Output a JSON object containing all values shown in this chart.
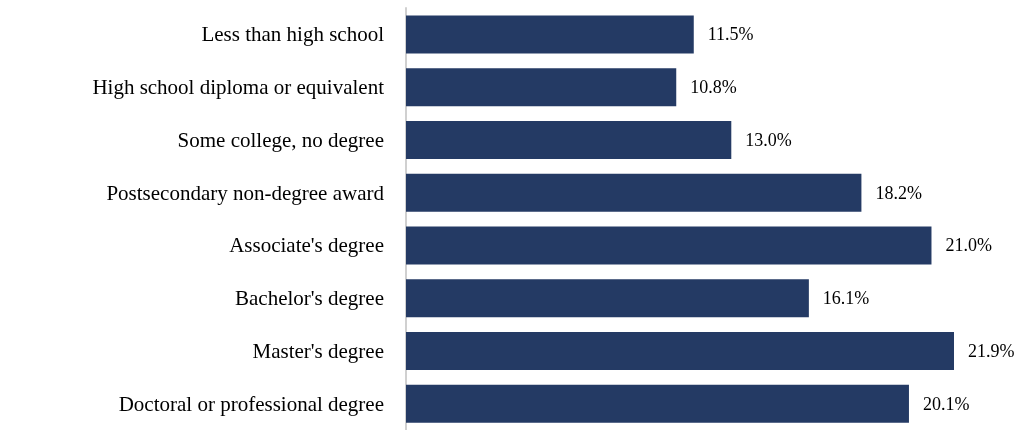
{
  "chart_data": {
    "type": "bar",
    "orientation": "horizontal",
    "categories": [
      "Less than high school",
      "High school diploma or equivalent",
      "Some college, no degree",
      "Postsecondary non-degree award",
      "Associate's degree",
      "Bachelor's degree",
      "Master's degree",
      "Doctoral or professional degree"
    ],
    "values": [
      11.5,
      10.8,
      13.0,
      18.2,
      21.0,
      16.1,
      21.9,
      20.1
    ],
    "value_labels": [
      "11.5%",
      "10.8%",
      "13.0%",
      "18.2%",
      "21.0%",
      "16.1%",
      "21.9%",
      "20.1%"
    ],
    "color": "#243a64"
  }
}
